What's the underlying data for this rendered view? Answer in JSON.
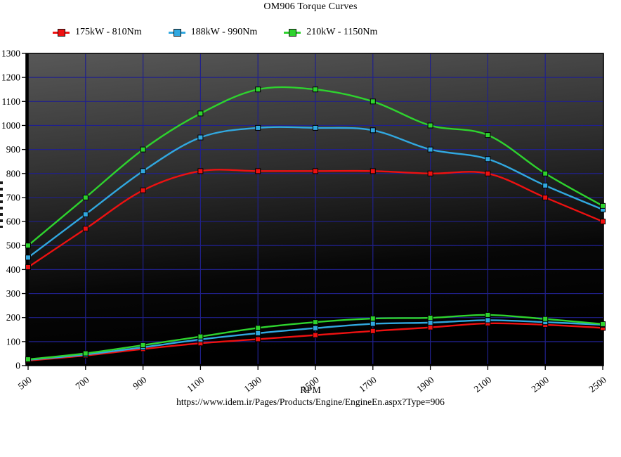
{
  "title": "OM906 Torque Curves",
  "x_axis_label": "RPM",
  "source_url": "https://www.idem.ir/Pages/Products/Engine/EngineEn.aspx?Type=906",
  "colors": {
    "series_red": "#ee1111",
    "series_blue": "#31a8e0",
    "series_green": "#2ed32e",
    "gridline": "#20208c",
    "axis": "#000000",
    "plot_bg_top": "#565656",
    "plot_bg_bottom": "#000000"
  },
  "chart_data": {
    "type": "line",
    "title": "OM906 Torque Curves",
    "xlabel": "RPM",
    "ylabel": "",
    "xlim": [
      500,
      2500
    ],
    "ylim": [
      0,
      1300
    ],
    "x_ticks": [
      500,
      700,
      900,
      1100,
      1300,
      1500,
      1700,
      1900,
      2100,
      2300,
      2500
    ],
    "y_ticks": [
      0,
      100,
      200,
      300,
      400,
      500,
      600,
      700,
      800,
      900,
      1000,
      1100,
      1200,
      1300
    ],
    "grid": true,
    "legend_position": "top-left",
    "marker": "square",
    "x": [
      500,
      700,
      900,
      1100,
      1300,
      1500,
      1700,
      1900,
      2100,
      2300,
      2500
    ],
    "series": [
      {
        "name": "175kW - 810Nm",
        "color": "#ee1111",
        "torque_curve_nm": [
          410,
          570,
          730,
          810,
          810,
          810,
          810,
          800,
          800,
          700,
          600
        ],
        "power_curve_kw": [
          21,
          42,
          69,
          93,
          110,
          127,
          144,
          159,
          176,
          170,
          157
        ]
      },
      {
        "name": "188kW - 990Nm",
        "color": "#31a8e0",
        "torque_curve_nm": [
          450,
          630,
          810,
          950,
          990,
          990,
          980,
          900,
          860,
          750,
          650
        ],
        "power_curve_kw": [
          24,
          46,
          76,
          109,
          135,
          156,
          174,
          179,
          189,
          181,
          170
        ]
      },
      {
        "name": "210kW - 1150Nm",
        "color": "#2ed32e",
        "torque_curve_nm": [
          500,
          700,
          900,
          1050,
          1150,
          1150,
          1100,
          1000,
          960,
          800,
          665
        ],
        "power_curve_kw": [
          26,
          51,
          85,
          121,
          157,
          181,
          196,
          199,
          211,
          194,
          173
        ]
      }
    ]
  }
}
